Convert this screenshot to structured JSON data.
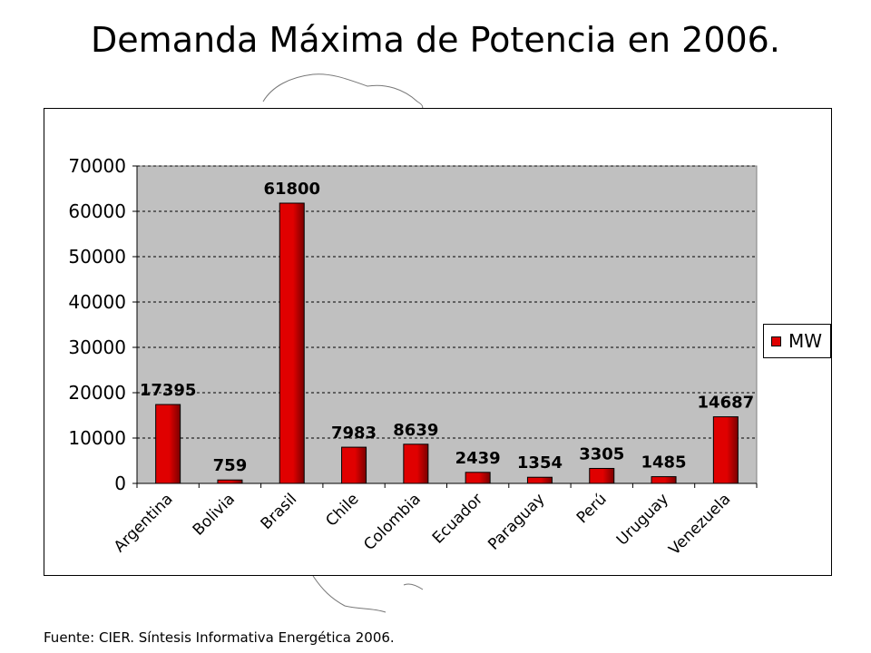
{
  "title": "Demanda Máxima de Potencia en 2006.",
  "source": "Fuente:  CIER.  Síntesis Informativa Energética 2006.",
  "legend": {
    "label": "MW"
  },
  "colors": {
    "bar": "#e00000",
    "bar_dark": "#7a0000",
    "plot_bg": "#c0c0c0"
  },
  "chart_data": {
    "type": "bar",
    "categories": [
      "Argentina",
      "Bolivia",
      "Brasil",
      "Chile",
      "Colombia",
      "Ecuador",
      "Paraguay",
      "Perú",
      "Uruguay",
      "Venezuela"
    ],
    "series": [
      {
        "name": "MW",
        "values": [
          17395,
          759,
          61800,
          7983,
          8639,
          2439,
          1354,
          3305,
          1485,
          14687
        ]
      }
    ],
    "data_labels": [
      "17395",
      "759",
      "61800",
      "7983",
      "8639",
      "2439",
      "1354",
      "3305",
      "1485",
      "14687"
    ],
    "y_ticks": [
      "0",
      "10000",
      "20000",
      "30000",
      "40000",
      "50000",
      "60000",
      "70000"
    ],
    "ylim": [
      0,
      70000
    ],
    "grid": true,
    "legend_position": "right"
  }
}
